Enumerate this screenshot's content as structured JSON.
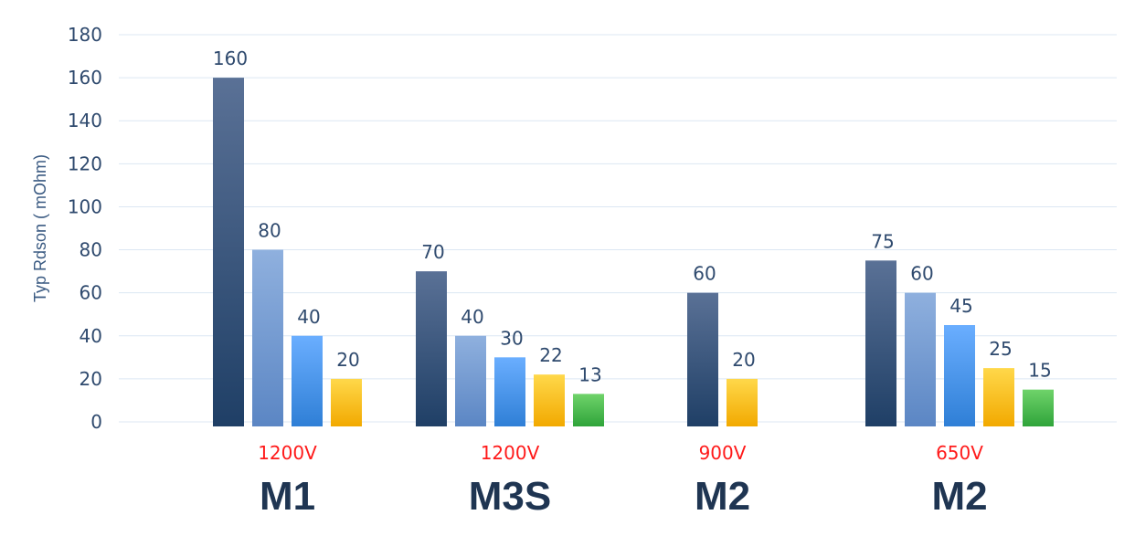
{
  "chart_data": {
    "type": "bar",
    "ylabel": "Typ Rdson ( mOhm)",
    "ylim": [
      0,
      180
    ],
    "yticks": [
      0,
      20,
      40,
      60,
      80,
      100,
      120,
      140,
      160,
      180
    ],
    "grid": true,
    "groups": [
      {
        "name": "M1",
        "voltage": "1200V",
        "values": [
          160,
          80,
          40,
          20
        ],
        "colors": [
          "dark-navy",
          "light-blue",
          "bright-blue",
          "yellow"
        ]
      },
      {
        "name": "M3S",
        "voltage": "1200V",
        "values": [
          70,
          40,
          30,
          22,
          13
        ],
        "colors": [
          "dark-navy",
          "light-blue",
          "bright-blue",
          "yellow",
          "green"
        ]
      },
      {
        "name": "M2",
        "voltage": "900V",
        "values": [
          60,
          20
        ],
        "colors": [
          "dark-navy",
          "yellow"
        ]
      },
      {
        "name": "M2",
        "voltage": "650V",
        "values": [
          75,
          60,
          45,
          25,
          15
        ],
        "colors": [
          "dark-navy",
          "light-blue",
          "bright-blue",
          "yellow",
          "green"
        ]
      }
    ]
  },
  "palette": {
    "dark-navy": [
      "#5a7196",
      "#1f3f66"
    ],
    "light-blue": [
      "#8fb0de",
      "#5b86c4"
    ],
    "bright-blue": [
      "#6aaeff",
      "#2f7fd6"
    ],
    "yellow": [
      "#ffd84a",
      "#f2a900"
    ],
    "green": [
      "#6fd36a",
      "#2fa43a"
    ]
  }
}
